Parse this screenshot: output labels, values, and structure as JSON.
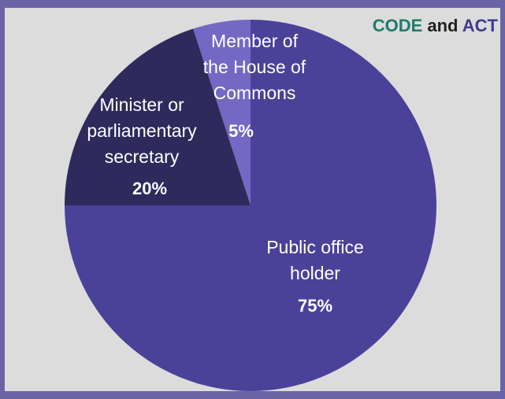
{
  "legend": {
    "part1": "CODE",
    "part2": " and ",
    "part3": "ACT",
    "colors": {
      "part1": "#1f7a6a",
      "part2": "#222222",
      "part3": "#3f3a8e"
    }
  },
  "chart_data": {
    "type": "pie",
    "title": "",
    "slices": [
      {
        "label_lines": [
          "Member of",
          "the House of",
          "Commons"
        ],
        "value": 5,
        "value_text": "5%",
        "color": "#7369c4"
      },
      {
        "label_lines": [
          "Public office",
          "holder"
        ],
        "value": 75,
        "value_text": "75%",
        "color": "#4a4299"
      },
      {
        "label_lines": [
          "Minister or",
          "parliamentary",
          "secretary"
        ],
        "value": 20,
        "value_text": "20%",
        "color": "#2e2a5c"
      }
    ]
  }
}
